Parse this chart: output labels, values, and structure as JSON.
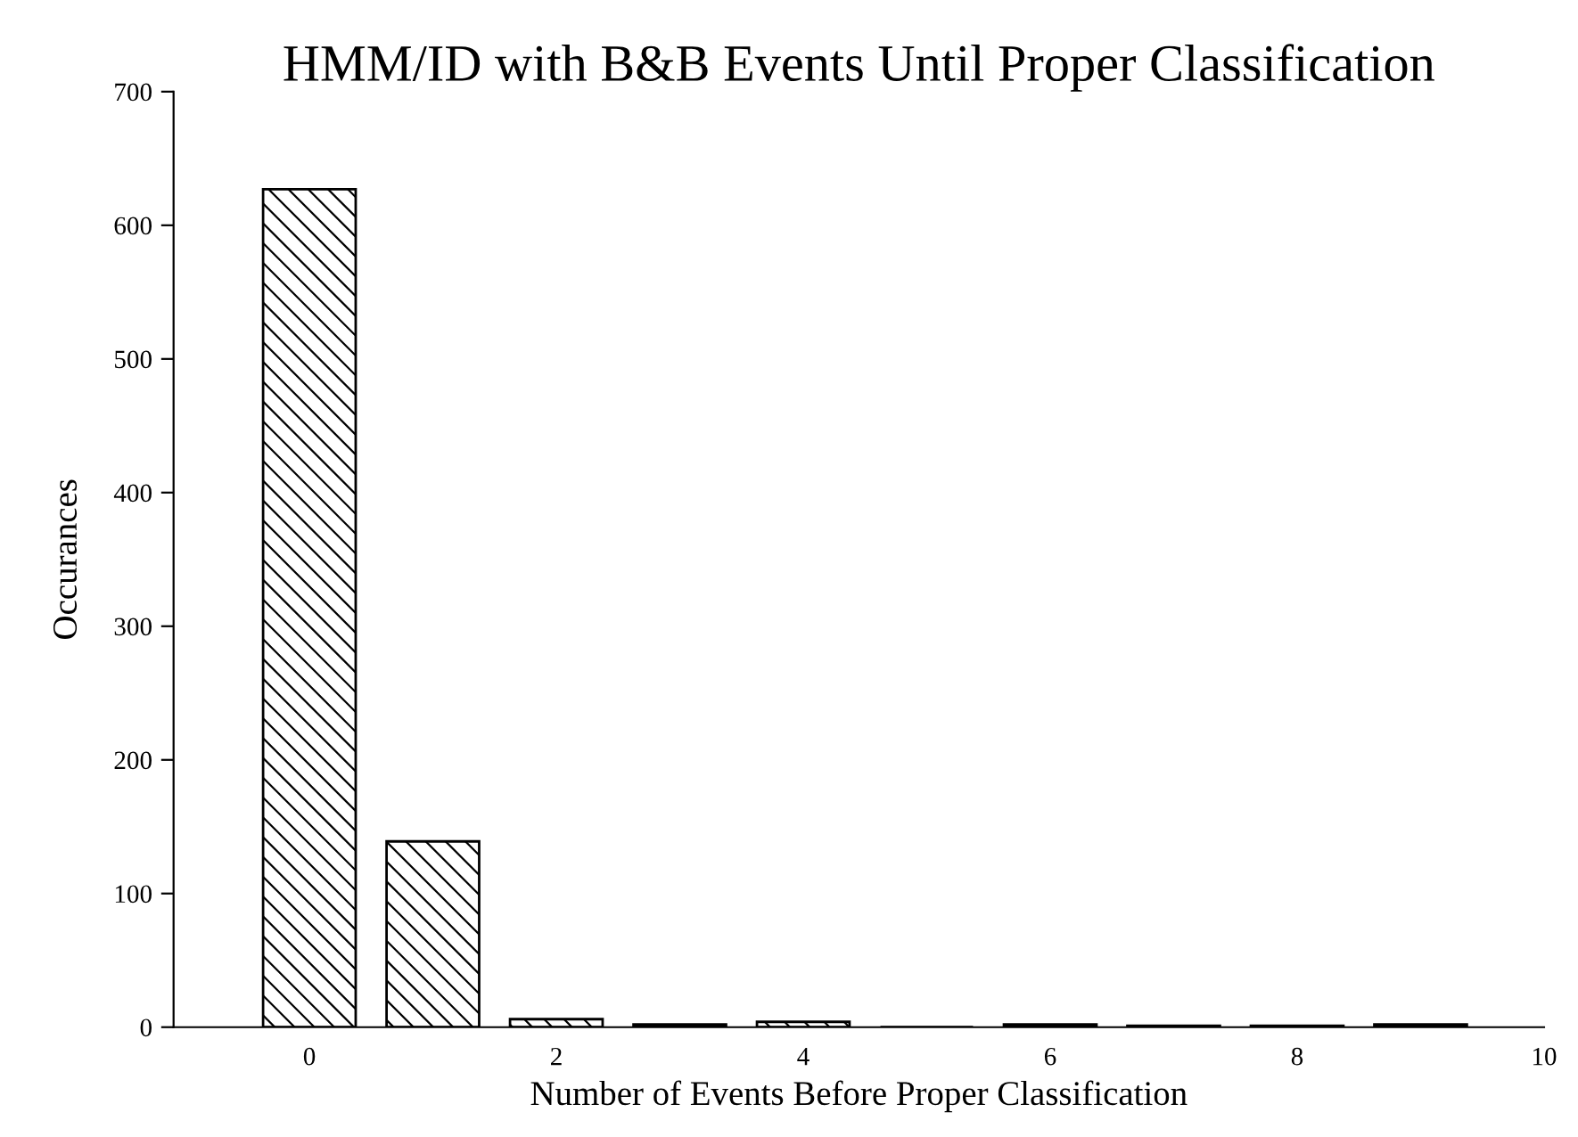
{
  "chart_data": {
    "type": "bar",
    "title": "HMM/ID with B&B Events Until Proper Classification",
    "xlabel": "Number of Events Before Proper Classification",
    "ylabel": "Occurances",
    "x": [
      0,
      1,
      2,
      3,
      4,
      5,
      6,
      7,
      8,
      9
    ],
    "values": [
      627,
      139,
      6,
      2,
      4,
      0,
      2,
      1,
      1,
      2
    ],
    "color": "#000000",
    "xlim": [
      -1.1,
      10
    ],
    "xticks": [
      0,
      2,
      4,
      6,
      8,
      10
    ],
    "ylim": [
      0,
      700
    ],
    "yticks": [
      0,
      100,
      200,
      300,
      400,
      500,
      600,
      700
    ],
    "grid": false,
    "legend": false
  }
}
